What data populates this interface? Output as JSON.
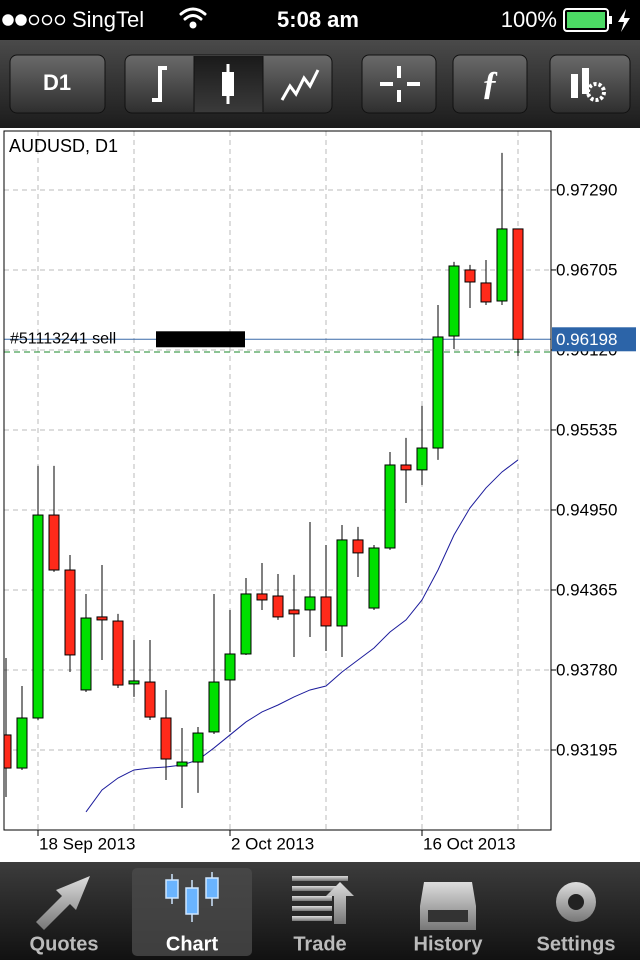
{
  "status_bar": {
    "carrier": "SingTel",
    "time": "5:08 am",
    "battery": "100%"
  },
  "toolbar": {
    "timeframe": "D1"
  },
  "chart_data": {
    "type": "candlestick",
    "title": "AUDUSD, D1",
    "categories": [
      null,
      null,
      "18 Sep 2013",
      null,
      null,
      null,
      null,
      null,
      null,
      null,
      null,
      null,
      null,
      null,
      "2 Oct 2013",
      null,
      null,
      null,
      null,
      null,
      null,
      null,
      null,
      null,
      null,
      null,
      "16 Oct 2013",
      null,
      null,
      null,
      null,
      null,
      null
    ],
    "open": [
      0.93305,
      0.93063,
      0.93429,
      0.94913,
      0.94511,
      0.93634,
      0.94168,
      0.94138,
      0.93678,
      0.93692,
      0.93429,
      0.93078,
      0.93107,
      0.93327,
      0.93707,
      0.93897,
      0.94336,
      0.94321,
      0.94219,
      0.94219,
      0.94314,
      0.94102,
      0.94731,
      0.94233,
      0.94672,
      0.95279,
      0.95243,
      0.95403,
      0.96222,
      0.96705,
      0.9661,
      0.96478,
      0.97005
    ],
    "high": [
      0.93868,
      0.93663,
      0.95272,
      0.95272,
      0.94621,
      0.94336,
      0.94548,
      0.9419,
      0.93999,
      0.93999,
      0.93634,
      0.93356,
      0.93363,
      0.94336,
      0.94219,
      0.94453,
      0.94562,
      0.94482,
      0.94475,
      0.94862,
      0.94694,
      0.9484,
      0.94826,
      0.94694,
      0.95374,
      0.95477,
      0.95711,
      0.96449,
      0.96764,
      0.96742,
      0.96778,
      0.97561,
      0.97005
    ],
    "low": [
      0.92851,
      0.93049,
      0.93414,
      0.94497,
      0.93765,
      0.93619,
      0.93853,
      0.93648,
      0.93583,
      0.93414,
      0.92976,
      0.92771,
      0.92881,
      0.93312,
      0.93327,
      0.9389,
      0.94219,
      0.94146,
      0.93875,
      0.94021,
      0.93919,
      0.93875,
      0.9446,
      0.94219,
      0.94658,
      0.95001,
      0.95133,
      0.95316,
      0.96127,
      0.96427,
      0.96449,
      0.96449,
      0.96076
    ],
    "close": [
      0.93063,
      0.93429,
      0.94913,
      0.94511,
      0.9389,
      0.9416,
      0.94146,
      0.9367,
      0.937,
      0.93436,
      0.93129,
      0.93107,
      0.93319,
      0.93692,
      0.93897,
      0.94336,
      0.94292,
      0.94168,
      0.9419,
      0.94314,
      0.94102,
      0.94731,
      0.94636,
      0.94672,
      0.95279,
      0.95243,
      0.95403,
      0.96215,
      0.96734,
      0.96617,
      0.96471,
      0.97005,
      0.96198
    ],
    "up_color": "#00e000",
    "down_color": "#ff2a1a",
    "ma": {
      "color": "#1c1c9c",
      "values": [
        null,
        null,
        null,
        null,
        null,
        0.92742,
        0.92903,
        0.9299,
        0.93049,
        0.93063,
        0.93071,
        0.93085,
        0.93122,
        0.9321,
        0.93305,
        0.934,
        0.93473,
        0.93524,
        0.93583,
        0.93634,
        0.93663,
        0.93765,
        0.93853,
        0.93941,
        0.94058,
        0.94146,
        0.94292,
        0.94511,
        0.94767,
        0.94965,
        0.95111,
        0.95228,
        0.95316
      ]
    },
    "ylim": [
      0.9261,
      0.97721
    ],
    "yticks": [
      {
        "value": 0.9729,
        "label": "0.97290"
      },
      0.96705,
      {
        "value": 0.9612,
        "label": "0.96120"
      },
      0.95535,
      {
        "value": 0.9495,
        "label": "0.94950"
      },
      0.94365,
      {
        "value": 0.9378,
        "label": "0.93780"
      },
      0.93195
    ],
    "grid": true,
    "current_price": 0.96198,
    "order": {
      "label": "#51113241 sell",
      "price": 0.96105
    }
  },
  "tab_bar": {
    "tabs": [
      "Quotes",
      "Chart",
      "Trade",
      "History",
      "Settings"
    ],
    "active_tab": 1
  }
}
